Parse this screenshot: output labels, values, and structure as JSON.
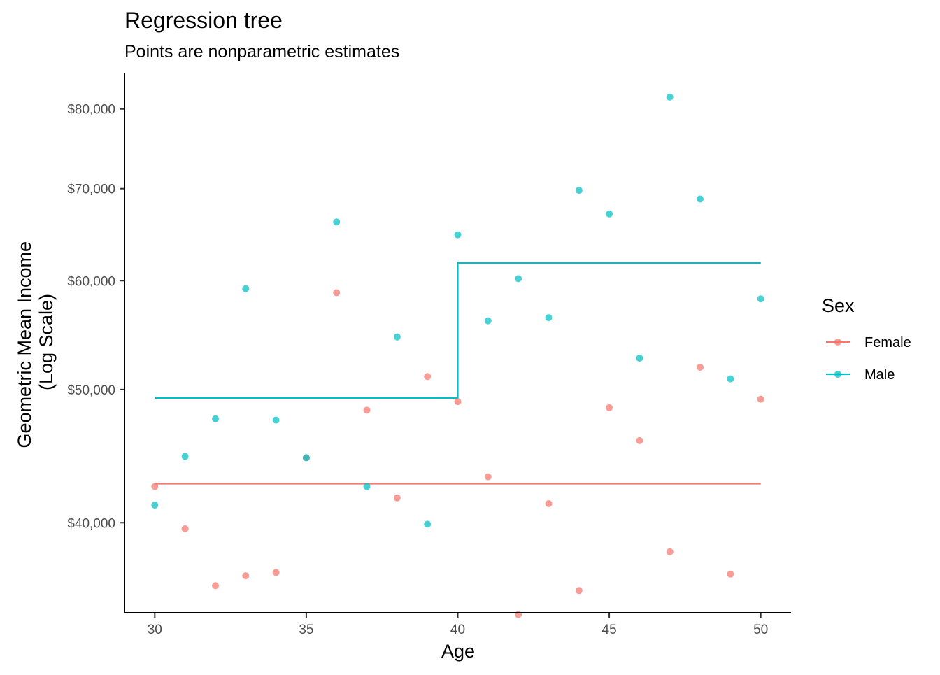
{
  "chart_data": {
    "type": "scatter",
    "title": "Regression tree",
    "subtitle": "Points are nonparametric estimates",
    "xlabel": "Age",
    "ylabel_lines": [
      "Geometric Mean Income",
      "(Log Scale)"
    ],
    "y_scale": "log",
    "xlim": [
      29,
      51
    ],
    "ylim": [
      34400,
      85000
    ],
    "x_ticks": [
      30,
      35,
      40,
      45,
      50
    ],
    "x_tick_labels": [
      "30",
      "35",
      "40",
      "45",
      "50"
    ],
    "y_ticks": [
      40000,
      50000,
      60000,
      70000,
      80000
    ],
    "y_tick_labels": [
      "$40,000",
      "$50,000",
      "$60,000",
      "$70,000",
      "$80,000"
    ],
    "grid": false,
    "legend": {
      "title": "Sex",
      "position": "right",
      "entries": [
        "Female",
        "Male"
      ]
    },
    "series": [
      {
        "name": "Female",
        "color": "#F8766D",
        "points": [
          [
            30,
            42500
          ],
          [
            31,
            39600
          ],
          [
            32,
            36000
          ],
          [
            33,
            36600
          ],
          [
            34,
            36800
          ],
          [
            35,
            44600
          ],
          [
            36,
            58800
          ],
          [
            37,
            48300
          ],
          [
            38,
            41700
          ],
          [
            39,
            51100
          ],
          [
            40,
            49000
          ],
          [
            41,
            43200
          ],
          [
            42,
            34300
          ],
          [
            43,
            41300
          ],
          [
            44,
            35700
          ],
          [
            45,
            48500
          ],
          [
            46,
            45900
          ],
          [
            47,
            38100
          ],
          [
            48,
            51900
          ],
          [
            49,
            36700
          ],
          [
            50,
            49200
          ]
        ],
        "step": [
          [
            30,
            42700
          ],
          [
            50,
            42700
          ]
        ]
      },
      {
        "name": "Male",
        "color": "#00BFC4",
        "points": [
          [
            30,
            41200
          ],
          [
            31,
            44700
          ],
          [
            32,
            47600
          ],
          [
            33,
            59200
          ],
          [
            34,
            47500
          ],
          [
            35,
            44600
          ],
          [
            36,
            66200
          ],
          [
            37,
            42500
          ],
          [
            38,
            54600
          ],
          [
            39,
            39900
          ],
          [
            40,
            64800
          ],
          [
            41,
            56100
          ],
          [
            42,
            60200
          ],
          [
            43,
            56400
          ],
          [
            44,
            69800
          ],
          [
            45,
            67100
          ],
          [
            46,
            52700
          ],
          [
            47,
            81600
          ],
          [
            48,
            68800
          ],
          [
            49,
            50900
          ],
          [
            50,
            58200
          ]
        ],
        "step": [
          [
            30,
            49300
          ],
          [
            40,
            49300
          ],
          [
            40,
            61800
          ],
          [
            50,
            61800
          ]
        ]
      }
    ]
  }
}
